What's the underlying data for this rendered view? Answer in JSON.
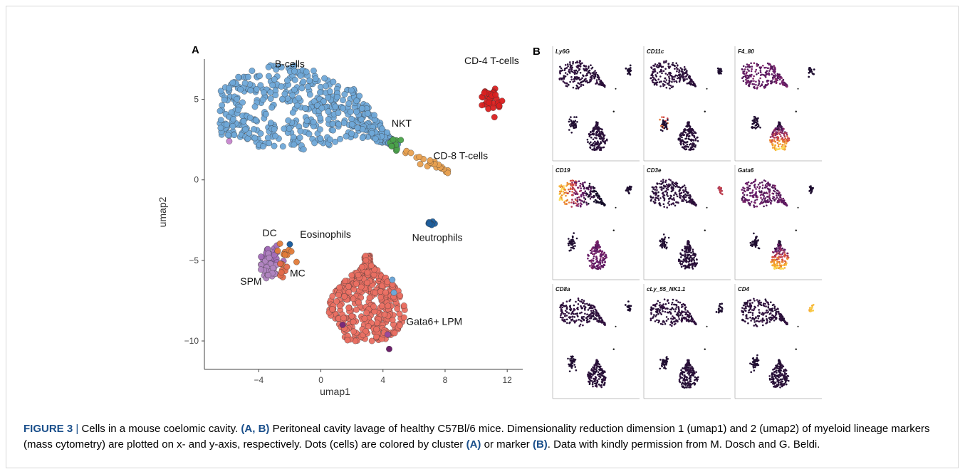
{
  "figure": {
    "label": "FIGURE 3",
    "separator": "|",
    "caption": {
      "lead": "Cells in a mouse coelomic cavity.",
      "ref_ab": "(A, B)",
      "text1": "Peritoneal cavity lavage of healthy C57Bl/6 mice. Dimensionality reduction dimension 1 (umap1) and 2 (umap2) of myeloid lineage markers (mass cytometry) are plotted on x- and y-axis, respectively. Dots (cells) are colored by cluster",
      "ref_a": "(A)",
      "text2": "or marker",
      "ref_b": "(B)",
      "text3": ". Data with kindly permission from M. Dosch and G. Beldi."
    }
  },
  "chart_data": [
    {
      "type": "scatter",
      "panel_label": "A",
      "xlabel": "umap1",
      "ylabel": "umap2",
      "xlim": [
        -7.5,
        13
      ],
      "ylim": [
        -11.5,
        7.5
      ],
      "xticks": [
        -4,
        0,
        4,
        8,
        12
      ],
      "yticks": [
        5,
        0,
        -5,
        -10
      ],
      "clusters": [
        {
          "name": "B-cells",
          "color": "#6fa8d8",
          "center": [
            -1.5,
            4.2
          ],
          "label_at": [
            -2,
            7
          ]
        },
        {
          "name": "CD-4 T-cells",
          "color": "#d92020",
          "center": [
            11,
            5.0
          ],
          "label_at": [
            11,
            7.2
          ]
        },
        {
          "name": "NKT",
          "color": "#4aa24a",
          "center": [
            4.8,
            2.2
          ],
          "label_at": [
            5.2,
            3.3
          ]
        },
        {
          "name": "CD-8 T-cells",
          "color": "#e8a050",
          "center": [
            7,
            1.0
          ],
          "label_at": [
            9,
            1.3
          ]
        },
        {
          "name": "Neutrophils",
          "color": "#1f5f9e",
          "center": [
            7.2,
            -2.7
          ],
          "label_at": [
            7.5,
            -3.8
          ]
        },
        {
          "name": "DC",
          "color": "#a36db8",
          "center": [
            -3.3,
            -5.0
          ],
          "label_at": [
            -3.3,
            -3.5
          ]
        },
        {
          "name": "Eosinophils",
          "color": "#e07b39",
          "center": [
            -2.3,
            -4.5
          ],
          "label_at": [
            0.3,
            -3.6
          ]
        },
        {
          "name": "SPM",
          "color": "#b084c0",
          "center": [
            -3.5,
            -5.7
          ],
          "label_at": [
            -4.5,
            -6.5
          ]
        },
        {
          "name": "MC",
          "color": "#e36a4a",
          "center": [
            -2.4,
            -5.6
          ],
          "label_at": [
            -1.5,
            -6.0
          ]
        },
        {
          "name": "Gata6+ LPM",
          "color": "#ea6f62",
          "center": [
            3,
            -7.5
          ],
          "label_at": [
            7.3,
            -9.0
          ]
        }
      ]
    },
    {
      "type": "scatter",
      "panel_label": "B",
      "panels": [
        "Ly6G",
        "CD11c",
        "F4_80",
        "CD19",
        "CD3e",
        "Gata6",
        "CD8a",
        "cLy_55_NK1.1",
        "CD4"
      ]
    }
  ]
}
